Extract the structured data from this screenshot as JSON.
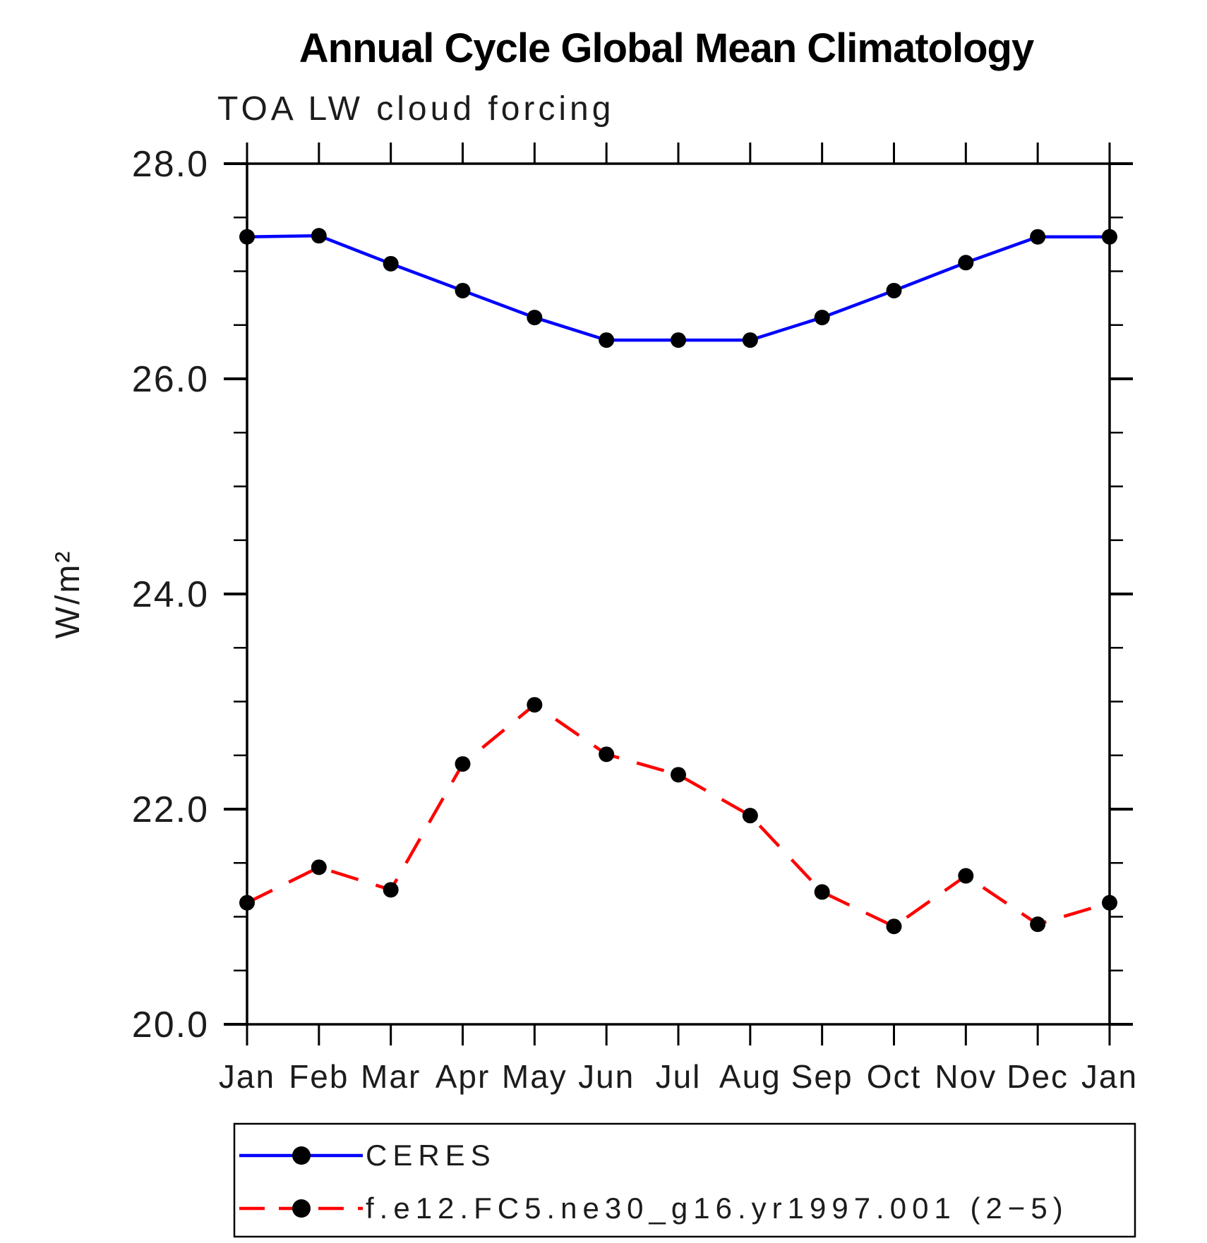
{
  "header": {
    "title": "Annual Cycle Global Mean Climatology",
    "subtitle": "TOA LW cloud forcing"
  },
  "chart_data": {
    "type": "line",
    "title": "Annual Cycle Global Mean Climatology",
    "subtitle": "TOA LW cloud forcing",
    "xlabel": "",
    "ylabel": "W/m²",
    "categories": [
      "Jan",
      "Feb",
      "Mar",
      "Apr",
      "May",
      "Jun",
      "Jul",
      "Aug",
      "Sep",
      "Oct",
      "Nov",
      "Dec",
      "Jan"
    ],
    "ylim": [
      20.0,
      28.0
    ],
    "y_major_tick_step": 2.0,
    "y_minor_tick_step": 0.5,
    "y_tick_labels": [
      "20.0",
      "22.0",
      "24.0",
      "26.0",
      "28.0"
    ],
    "grid": false,
    "legend_position": "bottom",
    "series": [
      {
        "name": "CERES",
        "color": "#0000ff",
        "line_style": "solid",
        "marker": "filled-circle",
        "marker_color": "#000000",
        "values": [
          27.32,
          27.33,
          27.07,
          26.82,
          26.57,
          26.36,
          26.36,
          26.36,
          26.57,
          26.82,
          27.08,
          27.32,
          27.32
        ]
      },
      {
        "name": "f.e12.FC5.ne30_g16.yr1997.001 (2−5)",
        "color": "#ff0000",
        "line_style": "dashed",
        "marker": "filled-circle",
        "marker_color": "#000000",
        "values": [
          21.13,
          21.46,
          21.25,
          22.42,
          22.97,
          22.51,
          22.32,
          21.94,
          21.23,
          20.91,
          21.38,
          20.93,
          21.13
        ]
      }
    ]
  },
  "colors": {
    "axis": "#000000",
    "background": "#ffffff",
    "series_blue": "#0000ff",
    "series_red": "#ff0000",
    "marker": "#000000"
  }
}
